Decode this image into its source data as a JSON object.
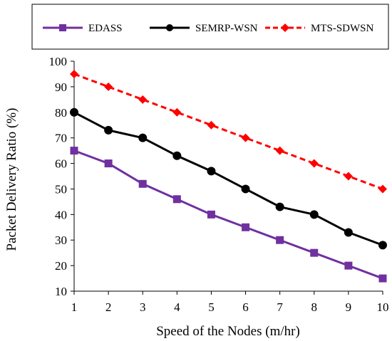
{
  "chart_data": {
    "type": "line",
    "title": "",
    "xlabel": "Speed of the Nodes (m/hr)",
    "ylabel": "Packet Delivery Ratio (%)",
    "x": [
      1,
      2,
      3,
      4,
      5,
      6,
      7,
      8,
      9,
      10
    ],
    "xlim": [
      1,
      10
    ],
    "ylim": [
      10,
      100
    ],
    "yticks": [
      10,
      20,
      30,
      40,
      50,
      60,
      70,
      80,
      90,
      100
    ],
    "grid": false,
    "legend_position": "top",
    "series": [
      {
        "name": "EDASS",
        "color": "#7030a0",
        "marker": "square",
        "dash": "solid",
        "values": [
          65,
          60,
          52,
          46,
          40,
          35,
          30,
          25,
          20,
          15
        ]
      },
      {
        "name": "SEMRP-WSN",
        "color": "#000000",
        "marker": "circle",
        "dash": "solid",
        "values": [
          80,
          73,
          70,
          63,
          57,
          50,
          43,
          40,
          33,
          28
        ]
      },
      {
        "name": "MTS-SDWSN",
        "color": "#ff0000",
        "marker": "diamond",
        "dash": "dashed",
        "values": [
          95,
          90,
          85,
          80,
          75,
          70,
          65,
          60,
          55,
          50
        ]
      }
    ]
  }
}
